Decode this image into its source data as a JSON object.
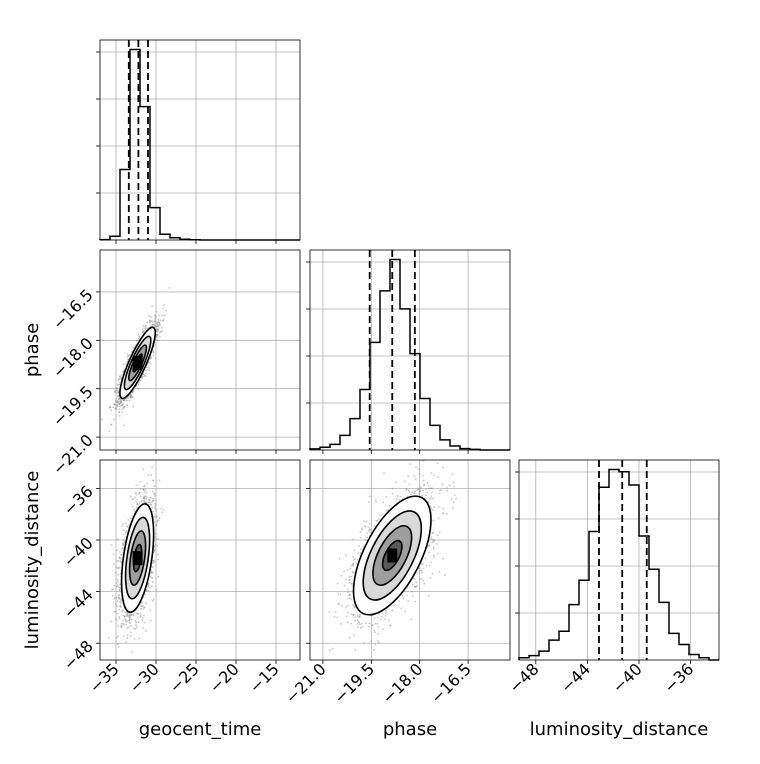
{
  "chart_data": {
    "type": "corner",
    "parameters": [
      "geocent_time",
      "phase",
      "luminosity_distance"
    ],
    "grid": true,
    "ranges": {
      "geocent_time": [
        -37,
        -12
      ],
      "phase": [
        -21.4,
        -15.2
      ],
      "luminosity_distance": [
        -49.3,
        -33.8
      ]
    },
    "ticks": {
      "geocent_time": [
        -35,
        -30,
        -25,
        -20,
        -15
      ],
      "phase": [
        -21.0,
        -19.5,
        -18.0,
        -16.5
      ],
      "luminosity_distance": [
        -48,
        -44,
        -40,
        -36
      ]
    },
    "tick_labels": {
      "geocent_time": [
        "−35",
        "−30",
        "−25",
        "−20",
        "−15"
      ],
      "phase": [
        "−21.0",
        "−19.5",
        "−18.0",
        "−16.5"
      ],
      "luminosity_distance": [
        "−48",
        "−44",
        "−40",
        "−36"
      ]
    },
    "quantiles": {
      "geocent_time": [
        -33.4,
        -32.2,
        -31.0
      ],
      "phase": [
        -19.55,
        -18.85,
        -18.15
      ],
      "luminosity_distance": [
        -43.1,
        -41.3,
        -39.4
      ]
    },
    "histograms": {
      "geocent_time": {
        "bins": [
          -37.0,
          -35.75,
          -34.5,
          -33.25,
          -32.0,
          -30.75,
          -29.5,
          -28.25,
          -27.0,
          -25.75,
          -24.5,
          -23.25,
          -22.0,
          -20.75,
          -19.5,
          -18.25,
          -17.0,
          -15.75,
          -14.5,
          -13.25,
          -12.0
        ],
        "counts": [
          2,
          20,
          370,
          1000,
          700,
          170,
          30,
          12,
          4,
          1,
          0,
          0,
          0,
          0,
          0,
          0,
          0,
          0,
          0,
          0
        ]
      },
      "phase": {
        "bins": [
          -21.4,
          -21.09,
          -20.78,
          -20.47,
          -20.16,
          -19.85,
          -19.54,
          -19.23,
          -18.92,
          -18.61,
          -18.3,
          -17.99,
          -17.68,
          -17.37,
          -17.06,
          -16.75,
          -16.44,
          -16.13,
          -15.82,
          -15.51,
          -15.2
        ],
        "counts": [
          5,
          12,
          25,
          65,
          140,
          270,
          480,
          710,
          850,
          630,
          430,
          230,
          110,
          45,
          18,
          6,
          3,
          0,
          0,
          0
        ]
      },
      "luminosity_distance": {
        "bins": [
          -49.3,
          -48.525,
          -47.75,
          -46.975,
          -46.2,
          -45.425,
          -44.65,
          -43.875,
          -43.1,
          -42.325,
          -41.55,
          -40.775,
          -40.0,
          -39.225,
          -38.45,
          -37.675,
          -36.9,
          -36.125,
          -35.35,
          -34.575,
          -33.8
        ],
        "counts": [
          10,
          20,
          40,
          90,
          130,
          250,
          360,
          580,
          780,
          860,
          850,
          790,
          560,
          410,
          260,
          120,
          70,
          25,
          10,
          0
        ]
      }
    },
    "density_panels": [
      {
        "x": "geocent_time",
        "y": "phase",
        "center": [
          -32.3,
          -18.7
        ],
        "sigma": [
          1.1,
          0.55
        ],
        "rho": 0.85,
        "points": 2600
      },
      {
        "x": "geocent_time",
        "y": "luminosity_distance",
        "center": [
          -32.3,
          -41.4
        ],
        "sigma": [
          1.0,
          2.1
        ],
        "rho": 0.45,
        "points": 2600
      },
      {
        "x": "phase",
        "y": "luminosity_distance",
        "center": [
          -18.85,
          -41.2
        ],
        "sigma": [
          0.6,
          2.3
        ],
        "rho": 0.6,
        "points": 2600
      }
    ],
    "contour_levels_sigma": [
      0.5,
      1.0,
      1.5,
      2.0
    ]
  }
}
